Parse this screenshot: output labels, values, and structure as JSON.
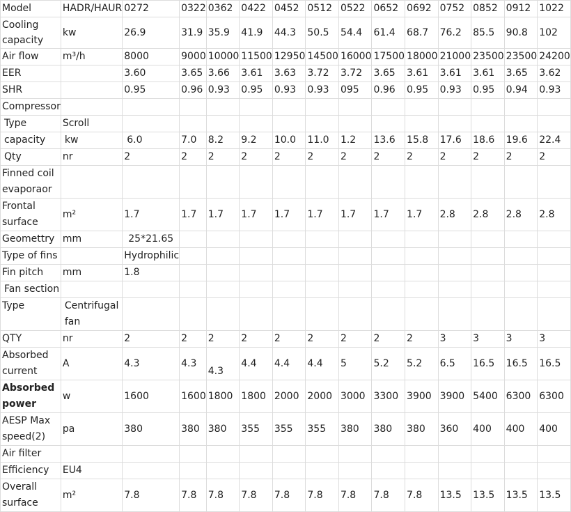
{
  "rows": {
    "model": {
      "label": "Model",
      "unit": "HADR/HAUR",
      "values": [
        "0272",
        "0322",
        "0362",
        "0422",
        "0452",
        "0512",
        "0522",
        "0652",
        "0692",
        "0752",
        "0852",
        "0912",
        "1022"
      ]
    },
    "cooling": {
      "label": "Cooling capacity",
      "unit": "kw",
      "values": [
        "26.9",
        "31.9",
        "35.9",
        "41.9",
        "44.3",
        "50.5",
        "54.4",
        "61.4",
        "68.7",
        "76.2",
        "85.5",
        "90.8",
        "102"
      ]
    },
    "airflow": {
      "label": "Air flow",
      "unit": "m³/h",
      "values": [
        "8000",
        "9000",
        "10000",
        "11500",
        "12950",
        "14500",
        "16000",
        "17500",
        "18000",
        "21000",
        "23500",
        "23500",
        "24200"
      ]
    },
    "eer": {
      "label": "EER",
      "values": [
        "3.60",
        "3.65",
        "3.66",
        "3.61",
        "3.63",
        "3.72",
        "3.72",
        "3.65",
        "3.61",
        "3.61",
        "3.61",
        "3.65",
        "3.62"
      ]
    },
    "shr": {
      "label": "SHR",
      "values": [
        "0.95",
        "0.96",
        "0.93",
        "0.95",
        "0.93",
        "0.93",
        "095",
        "0.96",
        "0.95",
        "0.93",
        "0.95",
        "0.94",
        "0.93"
      ]
    },
    "compressor": {
      "label": "Compressor"
    },
    "comp_type": {
      "label": "Type",
      "unit": "Scroll"
    },
    "comp_capacity": {
      "label": "capacity",
      "unit": "kw",
      "values": [
        "6.0",
        "7.0",
        "8.2",
        "9.2",
        "10.0",
        "11.0",
        "1.2",
        "13.6",
        "15.8",
        "17.6",
        "18.6",
        "19.6",
        "22.4"
      ]
    },
    "comp_qty": {
      "label": "Qty",
      "unit": "nr",
      "values": [
        "2",
        "2",
        "2",
        "2",
        "2",
        "2",
        "2",
        "2",
        "2",
        "2",
        "2",
        "2",
        "2"
      ]
    },
    "finned_coil": {
      "label": "Finned coil evaporaor"
    },
    "frontal": {
      "label": "Frontal surface",
      "unit": "m²",
      "values": [
        "1.7",
        "1.7",
        "1.7",
        "1.7",
        "1.7",
        "1.7",
        "1.7",
        "1.7",
        "1.7",
        "2.8",
        "2.8",
        "2.8",
        "2.8"
      ]
    },
    "geometry": {
      "label": "Geomettry",
      "unit": "mm",
      "value": "25*21.65"
    },
    "fin_type": {
      "label": "Type of fins",
      "value": "Hydrophilic"
    },
    "fin_pitch": {
      "label": "Fin pitch",
      "unit": "mm",
      "value": "1.8"
    },
    "fan_section": {
      "label": "Fan section"
    },
    "fan_type": {
      "label": "Type",
      "unit": "Centrifugal fan"
    },
    "fan_qty": {
      "label": "QTY",
      "unit": "nr",
      "values": [
        "2",
        "2",
        "2",
        "2",
        "2",
        "2",
        "2",
        "2",
        "2",
        "3",
        "3",
        "3",
        "3"
      ]
    },
    "current": {
      "label": "Absorbed current",
      "unit": "A",
      "values": [
        "4.3",
        "4.3",
        "4.3",
        "4.4",
        "4.4",
        "4.4",
        "5",
        "5.2",
        "5.2",
        "6.5",
        "16.5",
        "16.5",
        "16.5"
      ]
    },
    "power": {
      "label": "Absorbed power",
      "unit": "w",
      "values": [
        "1600",
        "1600",
        "1800",
        "1800",
        "2000",
        "2000",
        "3000",
        "3300",
        "3900",
        "3900",
        "5400",
        "6300",
        "6300"
      ]
    },
    "aesp": {
      "label": "AESP Max speed(2)",
      "unit": "pa",
      "values": [
        "380",
        "380",
        "380",
        "355",
        "355",
        "355",
        "380",
        "380",
        "380",
        "360",
        "400",
        "400",
        "400"
      ]
    },
    "air_filter": {
      "label": "Air filter"
    },
    "efficiency": {
      "label": "Efficiency",
      "unit": "EU4"
    },
    "overall": {
      "label": "Overall surface",
      "unit": "m²",
      "values": [
        "7.8",
        "7.8",
        "7.8",
        "7.8",
        "7.8",
        "7.8",
        "7.8",
        "7.8",
        "7.8",
        "13.5",
        "13.5",
        "13.5",
        "13.5"
      ]
    }
  }
}
